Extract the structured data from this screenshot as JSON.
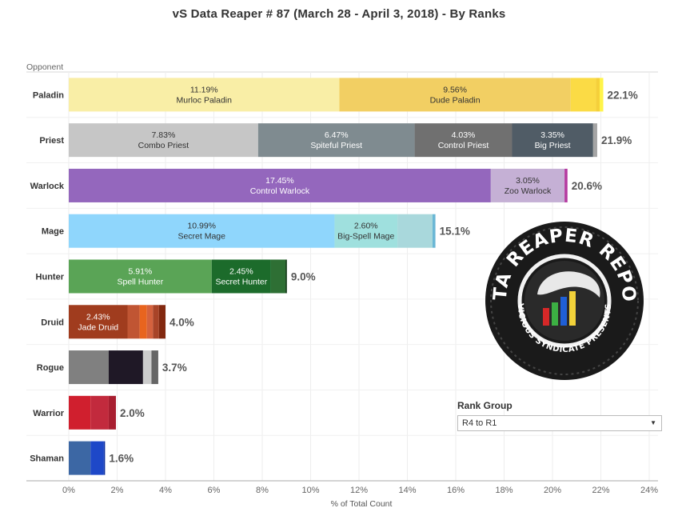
{
  "title": "vS Data Reaper #  87 (March 28 - April 3, 2018) - By Ranks",
  "colors": {
    "gridline": "#eeeeee",
    "axis": "#aaaaaa",
    "total_text": "#555555"
  },
  "chart_data": {
    "type": "bar",
    "orientation": "horizontal",
    "stacked": true,
    "row_header": "Opponent",
    "xlabel": "% of Total Count",
    "xlim": [
      0,
      24
    ],
    "xticks": [
      "0%",
      "2%",
      "4%",
      "6%",
      "8%",
      "10%",
      "12%",
      "14%",
      "16%",
      "18%",
      "20%",
      "22%",
      "24%"
    ],
    "grid": true,
    "categories": [
      "Paladin",
      "Priest",
      "Warlock",
      "Mage",
      "Hunter",
      "Druid",
      "Rogue",
      "Warrior",
      "Shaman"
    ],
    "rows": [
      {
        "class": "Paladin",
        "total_label": "22.1%",
        "segments": [
          {
            "name": "Murloc Paladin",
            "value": 11.19,
            "label": "11.19%",
            "color": "#f9eea6",
            "text_color": "#333333"
          },
          {
            "name": "Dude Paladin",
            "value": 9.56,
            "label": "9.56%",
            "color": "#f2cf63",
            "text_color": "#333333"
          },
          {
            "value": 1.05,
            "color": "#fbdb45"
          },
          {
            "value": 0.15,
            "color": "#f5d03a"
          },
          {
            "value": 0.15,
            "color": "#fff44a"
          }
        ]
      },
      {
        "class": "Priest",
        "total_label": "21.9%",
        "segments": [
          {
            "name": "Combo Priest",
            "value": 7.83,
            "label": "7.83%",
            "color": "#c6c6c6",
            "text_color": "#333333"
          },
          {
            "name": "Spiteful Priest",
            "value": 6.47,
            "label": "6.47%",
            "color": "#7f8b90",
            "text_color": "#ffffff"
          },
          {
            "name": "Control Priest",
            "value": 4.03,
            "label": "4.03%",
            "color": "#707070",
            "text_color": "#ffffff"
          },
          {
            "name": "Big Priest",
            "value": 3.35,
            "label": "3.35%",
            "color": "#505c66",
            "text_color": "#ffffff"
          },
          {
            "value": 0.17,
            "color": "#a5a5a5"
          }
        ]
      },
      {
        "class": "Warlock",
        "total_label": "20.6%",
        "segments": [
          {
            "name": "Control Warlock",
            "value": 17.45,
            "label": "17.45%",
            "color": "#9467bd",
            "text_color": "#ffffff"
          },
          {
            "name": "Zoo Warlock",
            "value": 3.05,
            "label": "3.05%",
            "color": "#c5b0d5",
            "text_color": "#333333"
          },
          {
            "value": 0.12,
            "color": "#b53aa0"
          }
        ]
      },
      {
        "class": "Mage",
        "total_label": "15.1%",
        "segments": [
          {
            "name": "Secret Mage",
            "value": 10.99,
            "label": "10.99%",
            "color": "#8fd6fc",
            "text_color": "#333333"
          },
          {
            "name": "Big-Spell Mage",
            "value": 2.6,
            "label": "2.60%",
            "color": "#9fe0de",
            "text_color": "#333333"
          },
          {
            "value": 1.45,
            "color": "#a9d8dc"
          },
          {
            "value": 0.12,
            "color": "#6ab7d5"
          }
        ]
      },
      {
        "class": "Hunter",
        "total_label": "9.0%",
        "segments": [
          {
            "name": "Spell Hunter",
            "value": 5.91,
            "label": "5.91%",
            "color": "#5aa456",
            "text_color": "#ffffff"
          },
          {
            "name": "Secret Hunter",
            "value": 2.45,
            "label": "2.45%",
            "color": "#1c6b2b",
            "text_color": "#ffffff"
          },
          {
            "value": 0.6,
            "color": "#2e6f34"
          },
          {
            "value": 0.06,
            "color": "#173f1c"
          }
        ]
      },
      {
        "class": "Druid",
        "total_label": "4.0%",
        "segments": [
          {
            "name": "Jade Druid",
            "value": 2.43,
            "label": "2.43%",
            "color": "#a03c1e",
            "text_color": "#ffffff"
          },
          {
            "value": 0.5,
            "color": "#c05533"
          },
          {
            "value": 0.3,
            "color": "#e8641e"
          },
          {
            "value": 0.25,
            "color": "#d4623e"
          },
          {
            "value": 0.25,
            "color": "#a84428"
          },
          {
            "value": 0.27,
            "color": "#82280f"
          }
        ]
      },
      {
        "class": "Rogue",
        "total_label": "3.7%",
        "segments": [
          {
            "value": 1.65,
            "color": "#808080"
          },
          {
            "value": 1.42,
            "color": "#1f1826"
          },
          {
            "value": 0.35,
            "color": "#cccccc"
          },
          {
            "value": 0.28,
            "color": "#666666"
          }
        ]
      },
      {
        "class": "Warrior",
        "total_label": "2.0%",
        "segments": [
          {
            "value": 0.9,
            "color": "#d01f2e"
          },
          {
            "value": 0.75,
            "color": "#c22a3d"
          },
          {
            "value": 0.3,
            "color": "#a81e30"
          }
        ]
      },
      {
        "class": "Shaman",
        "total_label": "1.6%",
        "segments": [
          {
            "value": 0.9,
            "color": "#3c67a4"
          },
          {
            "value": 0.55,
            "color": "#1e48c8"
          },
          {
            "value": 0.05,
            "color": "#0b2fa0"
          }
        ]
      }
    ]
  },
  "filter": {
    "title": "Rank Group",
    "selected": "R4 to R1"
  },
  "logo": {
    "top_text": "DATA REAPER REPORT",
    "bottom_text": "VICIOUS SYNDICATE PRESENTS"
  }
}
